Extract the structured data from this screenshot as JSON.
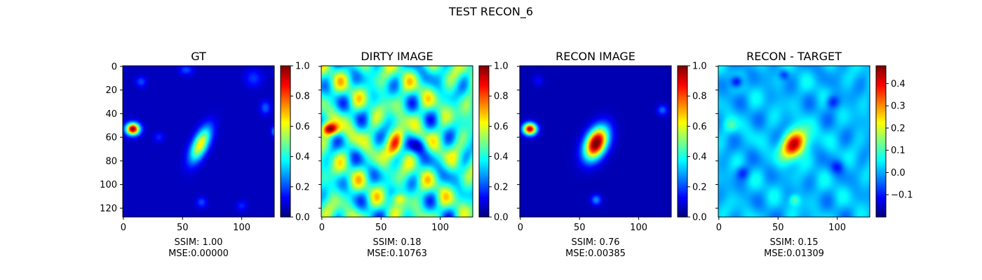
{
  "suptitle": "TEST RECON_6",
  "chart_data": [
    {
      "type": "heatmap",
      "title": "GT",
      "colormap": "jet",
      "xlim": [
        0,
        127
      ],
      "ylim": [
        127,
        0
      ],
      "xticks": [
        0,
        50,
        100
      ],
      "yticks": [
        0,
        20,
        40,
        60,
        80,
        100,
        120
      ],
      "show_yticklabels": true,
      "clim": [
        0.0,
        1.0
      ],
      "colorbar_ticks": [
        0.0,
        0.2,
        0.4,
        0.6,
        0.8,
        1.0
      ],
      "colorbar_labels": [
        "0.0",
        "0.2",
        "0.4",
        "0.6",
        "0.8",
        "1.0"
      ],
      "caption": [
        "SSIM: 1.00",
        "MSE:0.00000"
      ],
      "background": 0.06,
      "blobs": [
        {
          "x": 8,
          "y": 53,
          "sx": 4,
          "sy": 3.5,
          "rot": 0,
          "amp": 0.94
        },
        {
          "x": 65,
          "y": 66,
          "sx": 4.5,
          "sy": 11,
          "rot": 25,
          "amp": 0.58
        },
        {
          "x": 15,
          "y": 13,
          "sx": 3,
          "sy": 3,
          "rot": 0,
          "amp": 0.14
        },
        {
          "x": 53,
          "y": 3,
          "sx": 4,
          "sy": 3,
          "rot": 0,
          "amp": 0.14
        },
        {
          "x": 110,
          "y": 10,
          "sx": 5,
          "sy": 5,
          "rot": 0,
          "amp": 0.12
        },
        {
          "x": 120,
          "y": 35,
          "sx": 3,
          "sy": 4,
          "rot": 0,
          "amp": 0.16
        },
        {
          "x": 30,
          "y": 60,
          "sx": 3,
          "sy": 3,
          "rot": 0,
          "amp": 0.1
        },
        {
          "x": 66,
          "y": 115,
          "sx": 3,
          "sy": 3,
          "rot": 0,
          "amp": 0.14
        },
        {
          "x": 100,
          "y": 118,
          "sx": 3,
          "sy": 3,
          "rot": 0,
          "amp": 0.1
        },
        {
          "x": 128,
          "y": 55,
          "sx": 2,
          "sy": 3,
          "rot": 0,
          "amp": 0.25
        }
      ]
    },
    {
      "type": "heatmap",
      "title": "DIRTY IMAGE",
      "colormap": "jet",
      "xlim": [
        0,
        127
      ],
      "ylim": [
        127,
        0
      ],
      "xticks": [
        0,
        50,
        100
      ],
      "yticks": [
        0,
        20,
        40,
        60,
        80,
        100,
        120
      ],
      "show_yticklabels": false,
      "clim": [
        0.0,
        1.0
      ],
      "colorbar_ticks": [
        0.0,
        0.2,
        0.4,
        0.6,
        0.8,
        1.0
      ],
      "colorbar_labels": [
        "0.0",
        "0.2",
        "0.4",
        "0.6",
        "0.8",
        "1.0"
      ],
      "caption": [
        "SSIM: 0.18",
        "MSE:0.10763"
      ],
      "background": 0.42,
      "noise": 0.15,
      "blobs": [
        {
          "x": 7,
          "y": 53,
          "sx": 5,
          "sy": 3.5,
          "rot": 0,
          "amp": 0.55
        },
        {
          "x": 63,
          "y": 65,
          "sx": 4,
          "sy": 8,
          "rot": 20,
          "amp": 0.38
        },
        {
          "x": 80,
          "y": 67,
          "sx": 5,
          "sy": 5,
          "rot": 0,
          "amp": -0.3
        },
        {
          "x": 65,
          "y": 112,
          "sx": 4,
          "sy": 3,
          "rot": 0,
          "amp": 0.2
        }
      ]
    },
    {
      "type": "heatmap",
      "title": "RECON IMAGE",
      "colormap": "jet",
      "xlim": [
        0,
        127
      ],
      "ylim": [
        127,
        0
      ],
      "xticks": [
        0,
        50,
        100
      ],
      "yticks": [
        0,
        20,
        40,
        60,
        80,
        100,
        120
      ],
      "show_yticklabels": false,
      "clim": [
        0.0,
        1.0
      ],
      "colorbar_ticks": [
        0.0,
        0.2,
        0.4,
        0.6,
        0.8,
        1.0
      ],
      "colorbar_labels": [
        "0.0",
        "0.2",
        "0.4",
        "0.6",
        "0.8",
        "1.0"
      ],
      "caption": [
        "SSIM: 0.76",
        "MSE:0.00385"
      ],
      "background": 0.05,
      "blobs": [
        {
          "x": 8,
          "y": 53,
          "sx": 4,
          "sy": 3.5,
          "rot": 0,
          "amp": 0.9
        },
        {
          "x": 64,
          "y": 65,
          "sx": 6,
          "sy": 10,
          "rot": 25,
          "amp": 1.0
        },
        {
          "x": 64,
          "y": 113,
          "sx": 3,
          "sy": 3,
          "rot": 0,
          "amp": 0.22
        },
        {
          "x": 120,
          "y": 37,
          "sx": 3,
          "sy": 3,
          "rot": 0,
          "amp": 0.18
        },
        {
          "x": 15,
          "y": 12,
          "sx": 3,
          "sy": 3,
          "rot": 0,
          "amp": 0.08
        }
      ]
    },
    {
      "type": "heatmap",
      "title": "RECON - TARGET",
      "colormap": "jet",
      "xlim": [
        0,
        127
      ],
      "ylim": [
        127,
        0
      ],
      "xticks": [
        0,
        50,
        100
      ],
      "yticks": [
        0,
        20,
        40,
        60,
        80,
        100,
        120
      ],
      "show_yticklabels": false,
      "clim": [
        -0.2,
        0.48
      ],
      "colorbar_ticks": [
        -0.1,
        0.0,
        0.1,
        0.2,
        0.3,
        0.4
      ],
      "colorbar_labels": [
        "−0.1",
        "0.0",
        "0.1",
        "0.2",
        "0.3",
        "0.4"
      ],
      "caption": [
        "SSIM: 0.15",
        "MSE:0.01309"
      ],
      "background": 0.01,
      "noise": 0.03,
      "blobs": [
        {
          "x": 64,
          "y": 66,
          "sx": 6,
          "sy": 9,
          "rot": 35,
          "amp": 0.44
        },
        {
          "x": 15,
          "y": 13,
          "sx": 3.5,
          "sy": 3.5,
          "rot": 0,
          "amp": -0.17
        },
        {
          "x": 55,
          "y": 7,
          "sx": 3,
          "sy": 3,
          "rot": 0,
          "amp": -0.1
        },
        {
          "x": 96,
          "y": 30,
          "sx": 4,
          "sy": 4,
          "rot": 0,
          "amp": -0.12
        },
        {
          "x": 20,
          "y": 90,
          "sx": 4,
          "sy": 4,
          "rot": 0,
          "amp": -0.1
        },
        {
          "x": 100,
          "y": 85,
          "sx": 4,
          "sy": 4,
          "rot": 0,
          "amp": -0.09
        },
        {
          "x": 10,
          "y": 50,
          "sx": 4,
          "sy": 4,
          "rot": 0,
          "amp": 0.08
        },
        {
          "x": 64,
          "y": 113,
          "sx": 3,
          "sy": 3,
          "rot": 0,
          "amp": 0.1
        }
      ]
    }
  ]
}
